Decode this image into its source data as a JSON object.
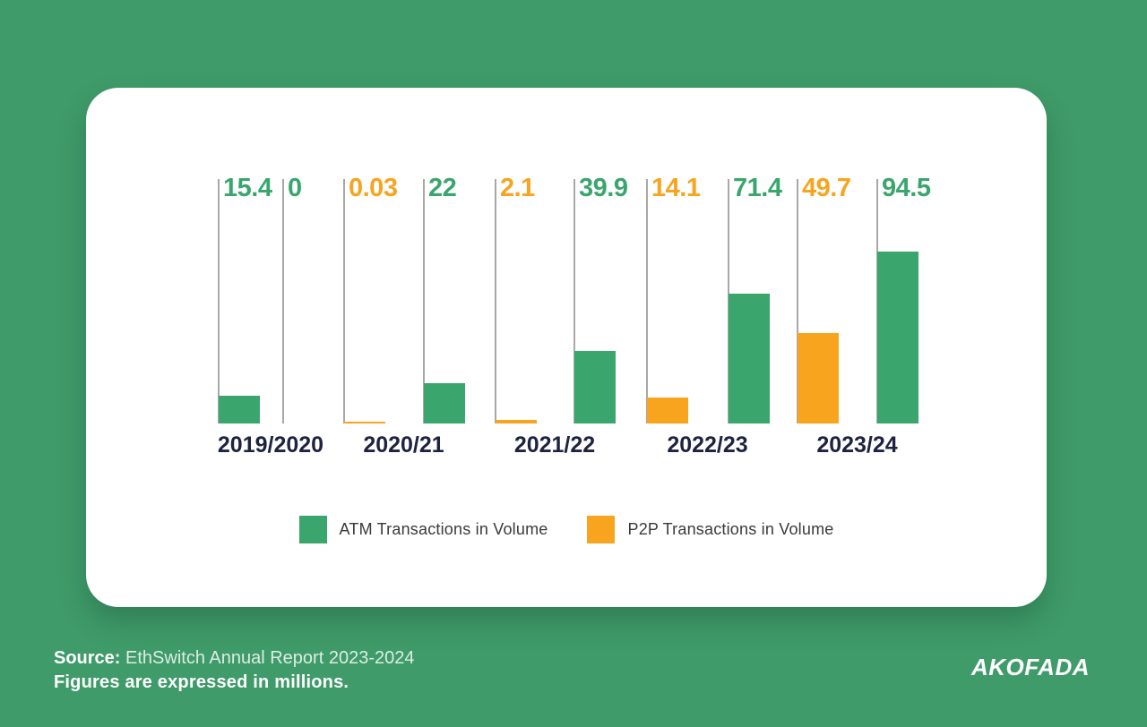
{
  "colors": {
    "background": "#3f9b69",
    "green": "#3aa66d",
    "orange": "#f8a41f",
    "navy": "#1d2340",
    "stem": "#a8a8a8",
    "legend_text": "#3a3a3a"
  },
  "chart_data": {
    "type": "bar",
    "title": "",
    "categories": [
      "2019/2020",
      "2020/21",
      "2021/22",
      "2022/23",
      "2023/24"
    ],
    "series": [
      {
        "name": "ATM Transactions in Volume",
        "color": "#3aa66d",
        "values": [
          15.4,
          22,
          39.9,
          71.4,
          94.5
        ]
      },
      {
        "name": "P2P Transactions in Volume",
        "color": "#f8a41f",
        "values": [
          0,
          0.03,
          2.1,
          14.1,
          49.7
        ]
      }
    ],
    "unit": "millions",
    "ylim": [
      0,
      100
    ],
    "grid": false,
    "value_labels_shown": true,
    "legend_position": "bottom"
  },
  "groups": [
    {
      "category": "2019/2020",
      "bars": [
        {
          "label": "15.4",
          "value": 15.4,
          "series": "ATM Transactions in Volume",
          "color_key": "green",
          "label_color_key": "green"
        },
        {
          "label": "0",
          "value": 0,
          "series": "P2P Transactions in Volume",
          "color_key": "green",
          "label_color_key": "green"
        }
      ]
    },
    {
      "category": "2020/21",
      "bars": [
        {
          "label": "0.03",
          "value": 0.03,
          "series": "P2P Transactions in Volume",
          "color_key": "orange",
          "label_color_key": "orange"
        },
        {
          "label": "22",
          "value": 22,
          "series": "ATM Transactions in Volume",
          "color_key": "green",
          "label_color_key": "green"
        }
      ]
    },
    {
      "category": "2021/22",
      "bars": [
        {
          "label": "2.1",
          "value": 2.1,
          "series": "P2P Transactions in Volume",
          "color_key": "orange",
          "label_color_key": "orange"
        },
        {
          "label": "39.9",
          "value": 39.9,
          "series": "ATM Transactions in Volume",
          "color_key": "green",
          "label_color_key": "green"
        }
      ]
    },
    {
      "category": "2022/23",
      "bars": [
        {
          "label": "14.1",
          "value": 14.1,
          "series": "P2P Transactions in Volume",
          "color_key": "orange",
          "label_color_key": "orange"
        },
        {
          "label": "71.4",
          "value": 71.4,
          "series": "ATM Transactions in Volume",
          "color_key": "green",
          "label_color_key": "green"
        }
      ]
    },
    {
      "category": "2023/24",
      "bars": [
        {
          "label": "49.7",
          "value": 49.7,
          "series": "P2P Transactions in Volume",
          "color_key": "orange",
          "label_color_key": "orange"
        },
        {
          "label": "94.5",
          "value": 94.5,
          "series": "ATM Transactions in Volume",
          "color_key": "green",
          "label_color_key": "green"
        }
      ]
    }
  ],
  "legend": [
    {
      "label": "ATM Transactions in Volume",
      "color_key": "green"
    },
    {
      "label": "P2P Transactions in Volume",
      "color_key": "orange"
    }
  ],
  "footer": {
    "source_label": "Source:",
    "source_text": "EthSwitch Annual Report 2023-2024",
    "note": "Figures are expressed in millions.",
    "brand": "AKOFADA"
  }
}
